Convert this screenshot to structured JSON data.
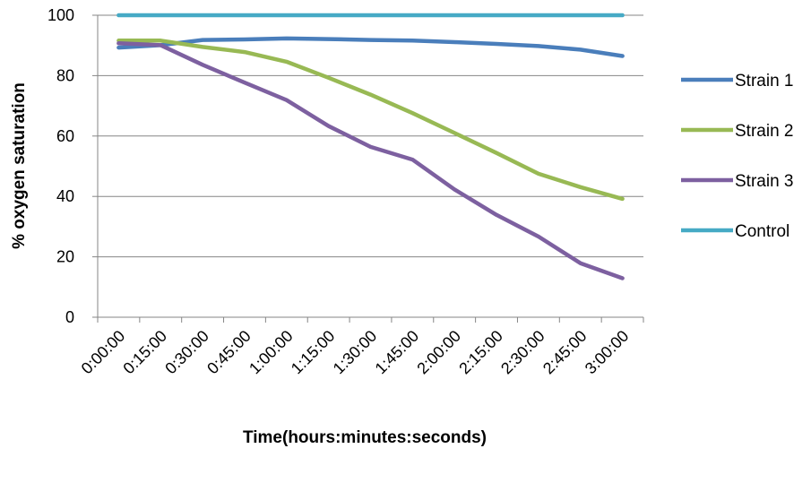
{
  "chart_data": {
    "type": "line",
    "title": "",
    "xlabel": "Time(hours:minutes:seconds)",
    "ylabel": "% oxygen saturation",
    "ylim": [
      0,
      100
    ],
    "yticks": [
      0,
      20,
      40,
      60,
      80,
      100
    ],
    "grid": true,
    "legend_position": "right",
    "categories": [
      "0:00:00",
      "0:15:00",
      "0:30:00",
      "0:45:00",
      "1:00:00",
      "1:15:00",
      "1:30:00",
      "1:45:00",
      "2:00:00",
      "2:15:00",
      "2:30:00",
      "2:45:00",
      "3:00:00"
    ],
    "series": [
      {
        "name": "Strain 1",
        "color": "#4a7ebb",
        "values": [
          89.3,
          90.1,
          91.8,
          92.0,
          92.3,
          92.1,
          91.8,
          91.6,
          91.1,
          90.5,
          89.8,
          88.6,
          86.5
        ]
      },
      {
        "name": "Strain 2",
        "color": "#98b954",
        "values": [
          91.6,
          91.6,
          89.5,
          87.8,
          84.6,
          79.3,
          73.7,
          67.6,
          61.0,
          54.4,
          47.5,
          43.1,
          39.2
        ]
      },
      {
        "name": "Strain 3",
        "color": "#7d60a0",
        "values": [
          90.7,
          90.1,
          83.6,
          77.7,
          71.9,
          63.3,
          56.4,
          52.2,
          42.3,
          33.9,
          26.7,
          17.9,
          12.9
        ]
      },
      {
        "name": "Control",
        "color": "#46aac5",
        "values": [
          100,
          100,
          100,
          100,
          100,
          100,
          100,
          100,
          100,
          100,
          100,
          100,
          100
        ]
      }
    ]
  }
}
